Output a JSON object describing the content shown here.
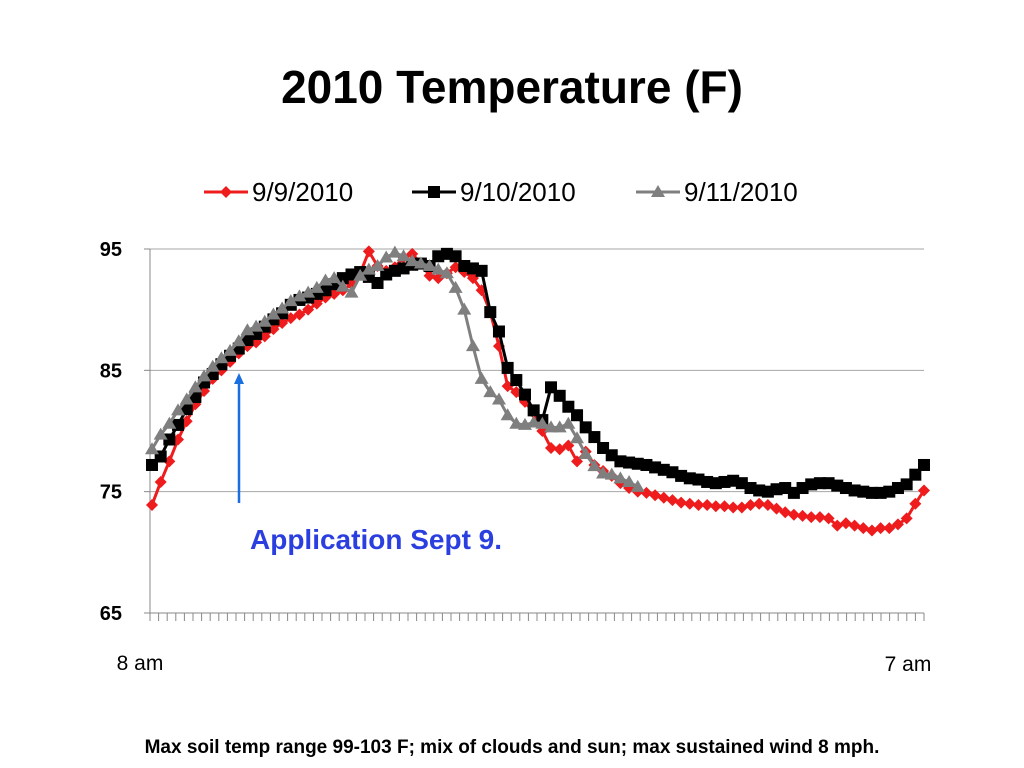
{
  "chart_data": {
    "type": "line",
    "title": "2010 Temperature (F)",
    "xlabel": "",
    "ylabel": "",
    "ylim": [
      65,
      95
    ],
    "yticks": [
      "95",
      "85",
      "75",
      "65"
    ],
    "x_start_label": "8 am",
    "x_end_label": "7 am",
    "grid": "horizontal",
    "legend_position": "top",
    "annotation": {
      "text": "Application Sept 9.",
      "color": "#2b3fe0",
      "arrow_color": "#1a6fe0"
    },
    "footnote": "Max soil temp range 99-103 F; mix of clouds and sun; max sustained wind 8 mph.",
    "series": [
      {
        "name": "9/9/2010",
        "color": "#ee1c1c",
        "marker": "diamond",
        "values": [
          73.9,
          75.8,
          77.5,
          79.3,
          80.8,
          82.2,
          83.3,
          84.3,
          85.0,
          85.7,
          86.4,
          87.0,
          87.3,
          87.8,
          88.4,
          88.9,
          89.3,
          89.6,
          90.0,
          90.5,
          91.0,
          91.3,
          91.6,
          92.1,
          93.0,
          94.8,
          93.6,
          93.2,
          93.5,
          94.3,
          94.6,
          93.8,
          92.8,
          92.6,
          93.0,
          93.5,
          93.1,
          92.6,
          91.6,
          89.8,
          87.0,
          83.7,
          83.2,
          82.4,
          81.5,
          80.0,
          78.6,
          78.5,
          78.8,
          77.5,
          78.3,
          77.2,
          76.7,
          76.3,
          75.7,
          75.3,
          75.0,
          74.9,
          74.7,
          74.5,
          74.3,
          74.1,
          74.0,
          73.9,
          73.9,
          73.8,
          73.8,
          73.7,
          73.7,
          73.9,
          74.0,
          73.9,
          73.6,
          73.3,
          73.1,
          73.0,
          72.9,
          72.9,
          72.8,
          72.2,
          72.4,
          72.2,
          72.0,
          71.8,
          72.0,
          72.0,
          72.3,
          72.8,
          74.0,
          75.1
        ]
      },
      {
        "name": "9/10/2010",
        "color": "#000000",
        "marker": "square",
        "values": [
          77.2,
          77.9,
          79.3,
          80.5,
          81.8,
          82.8,
          84.0,
          84.7,
          85.5,
          86.2,
          86.8,
          87.5,
          88.0,
          88.6,
          89.2,
          89.7,
          90.4,
          90.8,
          91.0,
          91.3,
          91.6,
          92.1,
          92.6,
          92.9,
          93.1,
          92.7,
          92.2,
          92.9,
          93.2,
          93.4,
          93.7,
          93.8,
          93.6,
          94.4,
          94.6,
          94.4,
          93.6,
          93.4,
          93.2,
          89.8,
          88.2,
          85.2,
          84.2,
          83.0,
          81.7,
          80.9,
          83.6,
          82.9,
          82.0,
          81.3,
          80.3,
          79.5,
          78.6,
          78.0,
          77.5,
          77.4,
          77.3,
          77.2,
          77.0,
          76.8,
          76.6,
          76.3,
          76.1,
          76.0,
          75.8,
          75.7,
          75.8,
          75.9,
          75.7,
          75.3,
          75.1,
          75.0,
          75.2,
          75.3,
          74.9,
          75.3,
          75.6,
          75.7,
          75.7,
          75.5,
          75.3,
          75.1,
          75.0,
          74.9,
          74.9,
          75.0,
          75.3,
          75.6,
          76.4,
          77.2
        ]
      },
      {
        "name": "9/11/2010",
        "color": "#7f7f7f",
        "marker": "triangle",
        "values": [
          78.5,
          79.7,
          80.6,
          81.7,
          82.6,
          83.6,
          84.5,
          85.3,
          86.0,
          86.6,
          87.4,
          88.3,
          88.6,
          89.0,
          89.6,
          90.1,
          90.7,
          91.1,
          91.4,
          91.8,
          92.4,
          92.6,
          91.9,
          91.4,
          92.8,
          93.3,
          93.6,
          94.3,
          94.7,
          94.4,
          94.0,
          93.8,
          93.6,
          93.3,
          93.0,
          91.8,
          90.0,
          87.0,
          84.3,
          83.2,
          82.6,
          81.3,
          80.6,
          80.5,
          80.7,
          80.6,
          80.3,
          80.3,
          80.6,
          79.4,
          78.1,
          77.1,
          76.5,
          76.4,
          76.1,
          75.8,
          75.4
        ]
      }
    ]
  }
}
